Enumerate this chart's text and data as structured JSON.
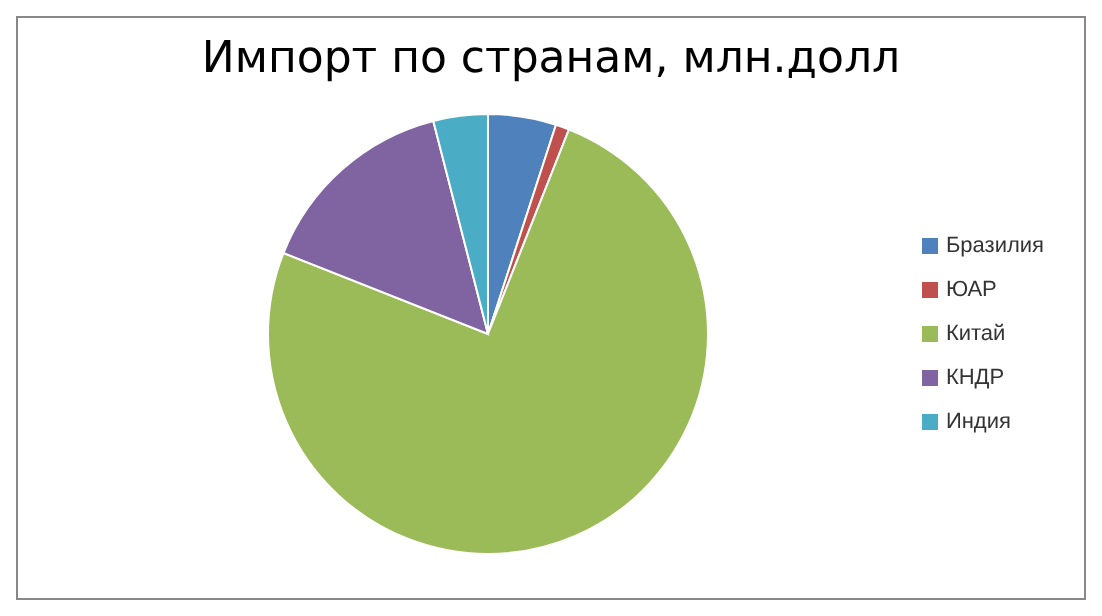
{
  "chart_data": {
    "type": "pie",
    "title": "Импорт по странам, млн.долл",
    "categories": [
      "Бразилия",
      "ЮАР",
      "Китай",
      "КНДР",
      "Индия"
    ],
    "values": [
      5,
      1,
      75,
      15,
      4
    ],
    "colors": [
      "#4f81bd",
      "#c0504d",
      "#9bbb59",
      "#8064a2",
      "#4bacc6"
    ],
    "legend": "right"
  }
}
